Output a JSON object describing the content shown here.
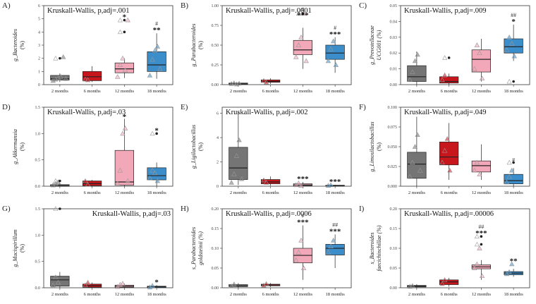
{
  "chart_data": [
    {
      "letter": "A)",
      "kruskal": "Kruskall-Wallis, p,adj=.001",
      "ylabel": "g_Bacteroides",
      "yunit": "(%)",
      "ylim": [
        0,
        6
      ],
      "ticks": [
        0,
        1,
        2,
        3,
        4,
        5,
        6
      ],
      "tick_labels": [
        "0",
        "1",
        "2",
        "3",
        "4",
        "5",
        "6"
      ],
      "kw_pos": "left",
      "categories": [
        "2 months",
        "6 months",
        "12 months",
        "18 months"
      ],
      "groups": [
        {
          "min": 0.2,
          "q1": 0.35,
          "median": 0.45,
          "q3": 0.7,
          "max": 0.85,
          "outliers": [
            2.0
          ],
          "points": [
            0.3,
            0.4,
            0.5,
            0.6,
            2.1,
            0.45
          ]
        },
        {
          "min": 0.2,
          "q1": 0.3,
          "median": 0.6,
          "q3": 1.0,
          "max": 1.4,
          "outliers": [],
          "points": [
            0.4,
            0.35
          ]
        },
        {
          "min": 0.5,
          "q1": 0.9,
          "median": 1.2,
          "q3": 1.65,
          "max": 2.0,
          "outliers": [
            4.9,
            4.0
          ],
          "points": [
            0.6,
            1.5,
            2.0,
            1.1,
            4.9
          ]
        },
        {
          "min": 0.45,
          "q1": 1.0,
          "median": 1.5,
          "q3": 2.5,
          "max": 3.9,
          "outliers": [],
          "points": [
            0.7,
            1.9,
            2.6,
            2.9,
            1.2
          ]
        }
      ],
      "annotations": [
        {
          "group": 2,
          "text": "*"
        },
        {
          "group": 3,
          "text": "**"
        }
      ],
      "hashes": [
        {
          "group": 3,
          "text": "#"
        }
      ]
    },
    {
      "letter": "B)",
      "kruskal": "Kruskall-Wallis, p,adj=.0001",
      "ylabel": "g_Parabacteroides",
      "yunit": "(%)",
      "ylim": [
        0,
        1.0
      ],
      "ticks": [
        0,
        0.25,
        0.5,
        0.75,
        1.0
      ],
      "tick_labels": [
        "0.00",
        "0.25",
        "0.50",
        "0.75",
        "1.00"
      ],
      "kw_pos": "left",
      "categories": [
        "2 months",
        "6 months",
        "12 months",
        "18 months"
      ],
      "groups": [
        {
          "min": 0.0,
          "q1": 0.005,
          "median": 0.01,
          "q3": 0.02,
          "max": 0.03,
          "outliers": [],
          "points": [
            0.01,
            0.02,
            0.005,
            0.015
          ]
        },
        {
          "min": 0.01,
          "q1": 0.03,
          "median": 0.04,
          "q3": 0.06,
          "max": 0.08,
          "outliers": [],
          "points": [
            0.05,
            0.03
          ]
        },
        {
          "min": 0.2,
          "q1": 0.38,
          "median": 0.44,
          "q3": 0.56,
          "max": 0.72,
          "outliers": [
            0.9
          ],
          "points": [
            0.35,
            0.5,
            0.6,
            0.9,
            0.3
          ]
        },
        {
          "min": 0.15,
          "q1": 0.32,
          "median": 0.4,
          "q3": 0.5,
          "max": 0.6,
          "outliers": [],
          "points": [
            0.3,
            0.45,
            0.55,
            0.25
          ]
        }
      ],
      "annotations": [
        {
          "group": 2,
          "text": "***"
        },
        {
          "group": 3,
          "text": "***"
        }
      ],
      "hashes": [
        {
          "group": 2,
          "text": "#"
        },
        {
          "group": 3,
          "text": "#"
        }
      ]
    },
    {
      "letter": "C)",
      "kruskal": "Kruskall-Wallis, p,adj=.009",
      "ylabel": "g_Prevotellaceae",
      "ylabel2": "UCG001 (%)",
      "yunit": "",
      "ylim": [
        0,
        0.05
      ],
      "ticks": [
        0,
        0.01,
        0.02,
        0.03,
        0.04,
        0.05
      ],
      "tick_labels": [
        "0.00",
        "0.01",
        "0.02",
        "0.03",
        "0.04",
        "0.05"
      ],
      "kw_pos": "left",
      "categories": [
        "2 months",
        "6 months",
        "12 months",
        "18 months"
      ],
      "groups": [
        {
          "min": 0.0,
          "q1": 0.002,
          "median": 0.005,
          "q3": 0.012,
          "max": 0.021,
          "outliers": [],
          "points": [
            0.003,
            0.008,
            0.015,
            0.019
          ]
        },
        {
          "min": 0.0,
          "q1": 0.001,
          "median": 0.002,
          "q3": 0.005,
          "max": 0.007,
          "outliers": [
            0.017
          ],
          "points": [
            0.003,
            0.006
          ]
        },
        {
          "min": 0.002,
          "q1": 0.008,
          "median": 0.016,
          "q3": 0.022,
          "max": 0.029,
          "outliers": [],
          "points": [
            0.01,
            0.025,
            0.02,
            0.004
          ]
        },
        {
          "min": 0.015,
          "q1": 0.02,
          "median": 0.024,
          "q3": 0.029,
          "max": 0.038,
          "outliers": [
            0.002
          ],
          "points": [
            0.022,
            0.03,
            0.026,
            0.018
          ]
        }
      ],
      "annotations": [
        {
          "group": 3,
          "text": "*"
        }
      ],
      "hashes": [
        {
          "group": 3,
          "text": "##"
        }
      ]
    },
    {
      "letter": "D)",
      "kruskal": "Kruskall-Wallis, p,adj=.03",
      "ylabel": "g_Akkermansia",
      "yunit": "(%)",
      "ylim": [
        0,
        1.5
      ],
      "ticks": [
        0,
        0.5,
        1.0,
        1.5
      ],
      "tick_labels": [
        "0.0",
        "0.5",
        "1.0",
        "1.5"
      ],
      "kw_pos": "left",
      "categories": [
        "2 months",
        "6 months",
        "12 months",
        "18 months"
      ],
      "groups": [
        {
          "min": 0.0,
          "q1": 0.0,
          "median": 0.01,
          "q3": 0.03,
          "max": 0.06,
          "outliers": [
            0.1
          ],
          "points": [
            0.02,
            0.05,
            0.08
          ]
        },
        {
          "min": 0.0,
          "q1": 0.01,
          "median": 0.05,
          "q3": 0.1,
          "max": 0.12,
          "outliers": [],
          "points": [
            0.1,
            0.03
          ]
        },
        {
          "min": 0.0,
          "q1": 0.02,
          "median": 0.08,
          "q3": 0.68,
          "max": 1.28,
          "outliers": [],
          "points": [
            0.05,
            0.3,
            1.0,
            1.1,
            0.1
          ]
        },
        {
          "min": 0.0,
          "q1": 0.12,
          "median": 0.2,
          "q3": 0.35,
          "max": 0.45,
          "outliers": [
            1.0
          ],
          "points": [
            0.15,
            0.3,
            0.25,
            0.1
          ]
        }
      ],
      "annotations": [
        {
          "group": 2,
          "text": "*"
        },
        {
          "group": 3,
          "text": "*"
        }
      ],
      "hashes": []
    },
    {
      "letter": "E)",
      "kruskal": "Kruskall-Wallis, p,adj=.002",
      "ylabel": "g_Ligilactobacillus",
      "yunit": "(%)",
      "ylim": [
        0,
        6.5
      ],
      "ticks": [
        0,
        2,
        4,
        6
      ],
      "tick_labels": [
        "0",
        "2",
        "4",
        "6"
      ],
      "kw_pos": "left",
      "categories": [
        "2 months",
        "6 months",
        "12 months",
        "18 months"
      ],
      "groups": [
        {
          "min": 0.1,
          "q1": 0.55,
          "median": 1.5,
          "q3": 3.2,
          "max": 6.1,
          "outliers": [],
          "points": [
            0.3,
            1.0,
            2.5,
            3.8,
            0.6
          ]
        },
        {
          "min": 0.05,
          "q1": 0.2,
          "median": 0.35,
          "q3": 0.55,
          "max": 0.8,
          "outliers": [],
          "points": [
            0.5,
            0.3
          ]
        },
        {
          "min": 0.0,
          "q1": 0.05,
          "median": 0.1,
          "q3": 0.2,
          "max": 0.35,
          "outliers": [],
          "points": [
            0.1,
            0.25,
            0.05
          ]
        },
        {
          "min": 0.0,
          "q1": 0.02,
          "median": 0.05,
          "q3": 0.08,
          "max": 0.12,
          "outliers": [],
          "points": [
            0.05,
            0.1
          ]
        }
      ],
      "annotations": [
        {
          "group": 2,
          "text": "***"
        },
        {
          "group": 3,
          "text": "***"
        }
      ],
      "hashes": []
    },
    {
      "letter": "F)",
      "kruskal": "Kruskall-Wallis, p,adj=.049",
      "ylabel": "g_Limosilactobacillus",
      "yunit": "(%)",
      "ylim": [
        0,
        0.1
      ],
      "ticks": [
        0,
        0.025,
        0.05,
        0.075,
        0.1
      ],
      "tick_labels": [
        "0.000",
        "0.025",
        "0.050",
        "0.075",
        "0.100"
      ],
      "kw_pos": "left",
      "categories": [
        "2 months",
        "6 months",
        "12 months",
        "18 months"
      ],
      "groups": [
        {
          "min": 0.0,
          "q1": 0.01,
          "median": 0.028,
          "q3": 0.043,
          "max": 0.088,
          "outliers": [],
          "points": [
            0.012,
            0.03,
            0.05,
            0.065,
            0.02
          ]
        },
        {
          "min": 0.008,
          "q1": 0.027,
          "median": 0.037,
          "q3": 0.056,
          "max": 0.08,
          "outliers": [],
          "points": [
            0.03,
            0.045,
            0.06,
            0.02
          ]
        },
        {
          "min": 0.008,
          "q1": 0.018,
          "median": 0.026,
          "q3": 0.032,
          "max": 0.053,
          "outliers": [],
          "points": [
            0.02,
            0.03,
            0.015
          ]
        },
        {
          "min": 0.0,
          "q1": 0.003,
          "median": 0.007,
          "q3": 0.015,
          "max": 0.023,
          "outliers": [
            0.03
          ],
          "points": [
            0.005,
            0.012,
            0.02
          ]
        }
      ],
      "annotations": [],
      "hashes": [
        {
          "group": 3,
          "text": "#"
        }
      ]
    },
    {
      "letter": "G)",
      "kruskal": "Kruskall-Wallis, p,adj=.03",
      "ylabel": "g_Mucispirillum",
      "yunit": "(%)",
      "ylim": [
        0,
        1.5
      ],
      "ticks": [
        0,
        0.5,
        1.0,
        1.5
      ],
      "tick_labels": [
        "0.0",
        "0.5",
        "1.0",
        "1.5"
      ],
      "kw_pos": "right",
      "categories": [
        "2 months",
        "6 months",
        "12 months",
        "18 months"
      ],
      "groups": [
        {
          "min": 0.0,
          "q1": 0.03,
          "median": 0.15,
          "q3": 0.22,
          "max": 0.3,
          "outliers": [
            1.5
          ],
          "points": [
            0.05,
            0.2,
            0.1
          ]
        },
        {
          "min": 0.0,
          "q1": 0.01,
          "median": 0.04,
          "q3": 0.07,
          "max": 0.1,
          "outliers": [],
          "points": [
            0.05,
            0.1
          ]
        },
        {
          "min": 0.0,
          "q1": 0.01,
          "median": 0.03,
          "q3": 0.05,
          "max": 0.08,
          "outliers": [],
          "points": [
            0.02,
            0.06,
            0.08
          ]
        },
        {
          "min": 0.0,
          "q1": 0.005,
          "median": 0.02,
          "q3": 0.03,
          "max": 0.05,
          "outliers": [],
          "points": [
            0.01,
            0.04
          ]
        }
      ],
      "annotations": [
        {
          "group": 3,
          "text": "*"
        }
      ],
      "hashes": []
    },
    {
      "letter": "H)",
      "kruskal": "Kruskall-Wallis, p,adj=.0006",
      "ylabel": "s_Parabacteroides",
      "ylabel2": "goldsteinii (%)",
      "yunit": "",
      "ylim": [
        0,
        0.2
      ],
      "ticks": [
        0,
        0.05,
        0.1,
        0.15,
        0.2
      ],
      "tick_labels": [
        "0.00",
        "0.05",
        "0.10",
        "0.15",
        "0.20"
      ],
      "kw_pos": "left",
      "categories": [
        "2 months",
        "6 months",
        "12 months",
        "18 months"
      ],
      "groups": [
        {
          "min": 0.0,
          "q1": 0.003,
          "median": 0.005,
          "q3": 0.008,
          "max": 0.012,
          "outliers": [],
          "points": [
            0.004,
            0.009
          ]
        },
        {
          "min": 0.002,
          "q1": 0.005,
          "median": 0.007,
          "q3": 0.009,
          "max": 0.012,
          "outliers": [],
          "points": [
            0.006,
            0.01
          ]
        },
        {
          "min": 0.02,
          "q1": 0.063,
          "median": 0.082,
          "q3": 0.1,
          "max": 0.158,
          "outliers": [],
          "points": [
            0.07,
            0.09,
            0.12,
            0.05
          ]
        },
        {
          "min": 0.05,
          "q1": 0.083,
          "median": 0.1,
          "q3": 0.11,
          "max": 0.135,
          "outliers": [],
          "points": [
            0.09,
            0.105,
            0.12
          ]
        }
      ],
      "annotations": [
        {
          "group": 2,
          "text": "***"
        },
        {
          "group": 3,
          "text": "***"
        }
      ],
      "hashes": [
        {
          "group": 2,
          "text": "#"
        },
        {
          "group": 3,
          "text": "##"
        }
      ]
    },
    {
      "letter": "I)",
      "kruskal": "Kruskall-Wallis, p,adj=.00006",
      "ylabel": "s_Bacteroides",
      "ylabel2": "faecichinchillae (%)",
      "yunit": "",
      "ylim": [
        0,
        0.2
      ],
      "ticks": [
        0,
        0.05,
        0.1,
        0.15,
        0.2
      ],
      "tick_labels": [
        "0.00",
        "0.05",
        "0.10",
        "0.15",
        "0.20"
      ],
      "kw_pos": "left",
      "categories": [
        "2 months",
        "6 months",
        "12 months",
        "18 months"
      ],
      "groups": [
        {
          "min": 0.0,
          "q1": 0.002,
          "median": 0.004,
          "q3": 0.006,
          "max": 0.009,
          "outliers": [],
          "points": [
            0.003,
            0.005
          ]
        },
        {
          "min": 0.003,
          "q1": 0.008,
          "median": 0.015,
          "q3": 0.02,
          "max": 0.025,
          "outliers": [],
          "points": [
            0.01,
            0.02
          ]
        },
        {
          "min": 0.02,
          "q1": 0.048,
          "median": 0.053,
          "q3": 0.058,
          "max": 0.07,
          "outliers": [
            0.13,
            0.11
          ],
          "points": [
            0.05,
            0.06,
            0.1,
            0.03
          ]
        },
        {
          "min": 0.028,
          "q1": 0.033,
          "median": 0.037,
          "q3": 0.041,
          "max": 0.048,
          "outliers": [],
          "points": [
            0.035,
            0.04,
            0.06
          ]
        }
      ],
      "annotations": [
        {
          "group": 2,
          "text": "***"
        },
        {
          "group": 3,
          "text": "**"
        }
      ],
      "hashes": [
        {
          "group": 2,
          "text": "##"
        }
      ]
    }
  ],
  "colors": {
    "box": [
      "#757575",
      "#c8161d",
      "#f2a8b8",
      "#3c8ecb"
    ],
    "marker": "#999999",
    "outlier": "#222222"
  }
}
